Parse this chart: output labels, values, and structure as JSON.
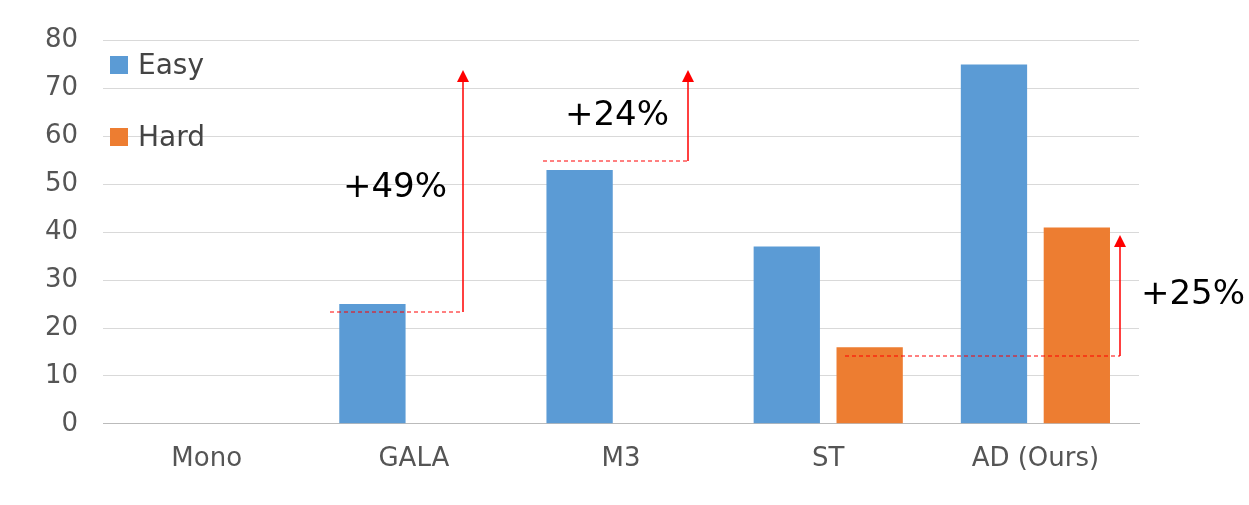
{
  "chart_data": {
    "type": "bar",
    "categories": [
      "Mono",
      "GALA",
      "M3",
      "ST",
      "AD (Ours)"
    ],
    "series": [
      {
        "name": "Easy",
        "color": "#5b9bd5",
        "values": [
          null,
          25,
          53,
          37,
          75
        ]
      },
      {
        "name": "Hard",
        "color": "#ed7d31",
        "values": [
          null,
          null,
          null,
          16,
          41
        ]
      }
    ],
    "ylim": [
      0,
      80
    ],
    "yticks": [
      0,
      10,
      20,
      30,
      40,
      50,
      60,
      70,
      80
    ],
    "grid": "y",
    "legend": "top left",
    "annotations": [
      "+49%",
      "+24%",
      "+25%"
    ]
  }
}
